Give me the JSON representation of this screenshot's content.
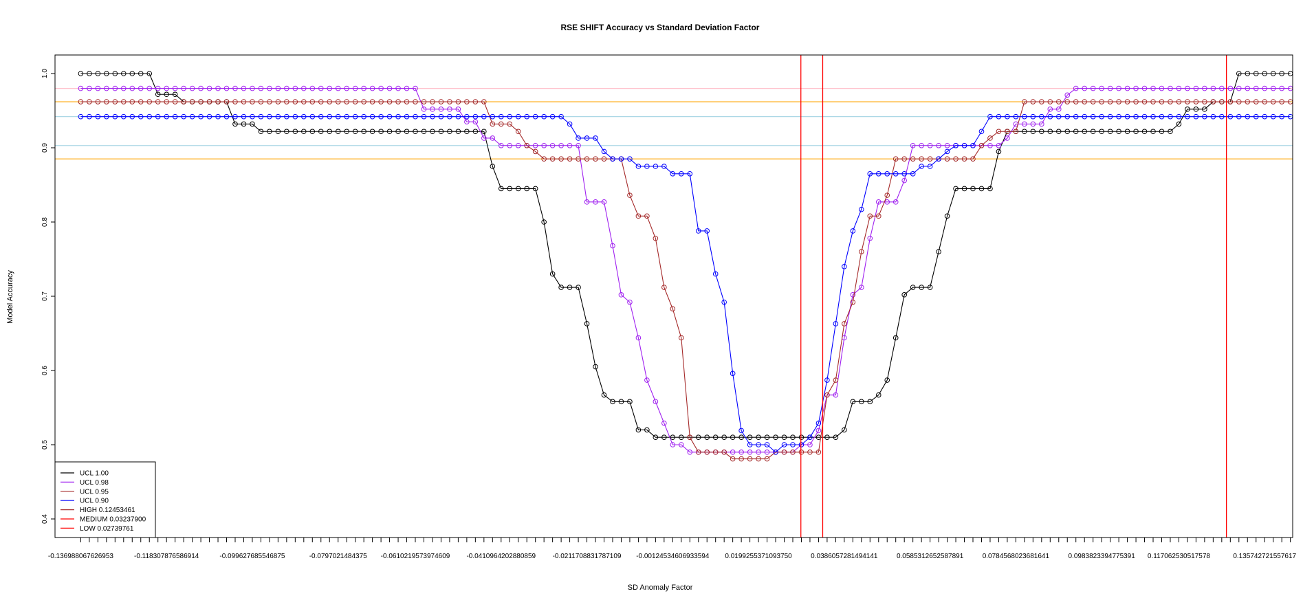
{
  "chart_data": {
    "type": "line",
    "title": "RSE SHIFT Accuracy vs Standard Deviation Factor",
    "xlabel": "SD Anomaly Factor",
    "ylabel": "Model Accuracy",
    "xlim": [
      -0.14286,
      0.13966
    ],
    "ylim": [
      0.375,
      1.025
    ],
    "yticks": [
      0.4,
      0.5,
      0.6,
      0.7,
      0.8,
      0.9,
      1.0
    ],
    "ytick_labels": [
      "0.4",
      "0.5",
      "0.6",
      "0.7",
      "0.8",
      "0.9",
      "1.0"
    ],
    "x_start": -0.136988067626953,
    "x_step": 0.00195831,
    "n_points": 142,
    "xtick_labels": [
      {
        "index": 0,
        "label": "-0.136988067626953"
      },
      {
        "index": 10,
        "label": "-0.118307876586914"
      },
      {
        "index": 20,
        "label": "-0.099627685546875"
      },
      {
        "index": 30,
        "label": "-0.0797021484375"
      },
      {
        "index": 39,
        "label": "-0.0610219573974609"
      },
      {
        "index": 49,
        "label": "-0.0410964202880859"
      },
      {
        "index": 59,
        "label": "-0.0211708831787109"
      },
      {
        "index": 69,
        "label": "-0.00124534606933594"
      },
      {
        "index": 79,
        "label": "0.0199255371093750"
      },
      {
        "index": 89,
        "label": "0.0386057281494141"
      },
      {
        "index": 99,
        "label": "0.0585312652587891"
      },
      {
        "index": 109,
        "label": "0.0784568023681641"
      },
      {
        "index": 119,
        "label": "0.0983823394775391"
      },
      {
        "index": 128,
        "label": "0.117062530517578"
      },
      {
        "index": 138,
        "label": "0.135742721557617"
      }
    ],
    "series": [
      {
        "name": "UCL 1.00",
        "color": "#000000",
        "segments": [
          [
            0,
            1.0
          ],
          [
            8,
            1.0
          ],
          [
            9,
            0.972
          ],
          [
            11,
            0.972
          ],
          [
            12,
            0.962
          ],
          [
            17,
            0.962
          ],
          [
            18,
            0.932
          ],
          [
            20,
            0.932
          ],
          [
            21,
            0.922
          ],
          [
            47,
            0.922
          ],
          [
            48,
            0.875
          ],
          [
            49,
            0.845
          ],
          [
            53,
            0.845
          ],
          [
            54,
            0.8
          ],
          [
            55,
            0.73
          ],
          [
            56,
            0.712
          ],
          [
            58,
            0.712
          ],
          [
            59,
            0.663
          ],
          [
            60,
            0.605
          ],
          [
            61,
            0.567
          ],
          [
            62,
            0.558
          ],
          [
            64,
            0.558
          ],
          [
            65,
            0.52
          ],
          [
            66,
            0.52
          ],
          [
            67,
            0.51
          ],
          [
            88,
            0.51
          ],
          [
            89,
            0.52
          ],
          [
            90,
            0.558
          ],
          [
            92,
            0.558
          ],
          [
            93,
            0.567
          ],
          [
            94,
            0.587
          ],
          [
            95,
            0.644
          ],
          [
            96,
            0.702
          ],
          [
            97,
            0.712
          ],
          [
            99,
            0.712
          ],
          [
            100,
            0.76
          ],
          [
            101,
            0.808
          ],
          [
            102,
            0.845
          ],
          [
            106,
            0.845
          ],
          [
            107,
            0.895
          ],
          [
            108,
            0.922
          ],
          [
            127,
            0.922
          ],
          [
            128,
            0.932
          ],
          [
            129,
            0.952
          ],
          [
            131,
            0.952
          ],
          [
            132,
            0.962
          ],
          [
            134,
            0.962
          ],
          [
            135,
            1.0
          ],
          [
            141,
            1.0
          ]
        ]
      },
      {
        "name": "UCL 0.98",
        "color": "#a020f0",
        "segments": [
          [
            0,
            0.98
          ],
          [
            39,
            0.98
          ],
          [
            40,
            0.952
          ],
          [
            44,
            0.952
          ],
          [
            45,
            0.935
          ],
          [
            47,
            0.913
          ],
          [
            48,
            0.913
          ],
          [
            49,
            0.903
          ],
          [
            57,
            0.903
          ],
          [
            58,
            0.903
          ],
          [
            59,
            0.827
          ],
          [
            61,
            0.827
          ],
          [
            62,
            0.768
          ],
          [
            63,
            0.702
          ],
          [
            64,
            0.692
          ],
          [
            65,
            0.644
          ],
          [
            66,
            0.587
          ],
          [
            67,
            0.558
          ],
          [
            68,
            0.529
          ],
          [
            69,
            0.5
          ],
          [
            70,
            0.5
          ],
          [
            71,
            0.49
          ],
          [
            83,
            0.49
          ],
          [
            84,
            0.5
          ],
          [
            85,
            0.5
          ],
          [
            86,
            0.519
          ],
          [
            87,
            0.567
          ],
          [
            88,
            0.567
          ],
          [
            89,
            0.644
          ],
          [
            90,
            0.702
          ],
          [
            91,
            0.712
          ],
          [
            92,
            0.778
          ],
          [
            93,
            0.827
          ],
          [
            95,
            0.827
          ],
          [
            96,
            0.856
          ],
          [
            97,
            0.903
          ],
          [
            107,
            0.903
          ],
          [
            108,
            0.913
          ],
          [
            109,
            0.932
          ],
          [
            112,
            0.932
          ],
          [
            113,
            0.952
          ],
          [
            114,
            0.952
          ],
          [
            115,
            0.971
          ],
          [
            116,
            0.98
          ],
          [
            141,
            0.98
          ]
        ]
      },
      {
        "name": "UCL 0.95",
        "color": "#a52a2a",
        "segments": [
          [
            0,
            0.962
          ],
          [
            47,
            0.962
          ],
          [
            48,
            0.932
          ],
          [
            50,
            0.932
          ],
          [
            51,
            0.922
          ],
          [
            52,
            0.903
          ],
          [
            53,
            0.895
          ],
          [
            54,
            0.885
          ],
          [
            63,
            0.885
          ],
          [
            64,
            0.836
          ],
          [
            65,
            0.808
          ],
          [
            66,
            0.808
          ],
          [
            67,
            0.778
          ],
          [
            68,
            0.712
          ],
          [
            69,
            0.683
          ],
          [
            70,
            0.644
          ],
          [
            71,
            0.51
          ],
          [
            72,
            0.49
          ],
          [
            75,
            0.49
          ],
          [
            76,
            0.481
          ],
          [
            80,
            0.481
          ],
          [
            81,
            0.49
          ],
          [
            86,
            0.49
          ],
          [
            87,
            0.567
          ],
          [
            88,
            0.587
          ],
          [
            89,
            0.663
          ],
          [
            90,
            0.692
          ],
          [
            91,
            0.76
          ],
          [
            92,
            0.808
          ],
          [
            93,
            0.808
          ],
          [
            94,
            0.836
          ],
          [
            95,
            0.885
          ],
          [
            104,
            0.885
          ],
          [
            105,
            0.903
          ],
          [
            106,
            0.913
          ],
          [
            107,
            0.922
          ],
          [
            109,
            0.922
          ],
          [
            110,
            0.962
          ],
          [
            141,
            0.962
          ]
        ]
      },
      {
        "name": "UCL 0.90",
        "color": "#0000ff",
        "segments": [
          [
            0,
            0.942
          ],
          [
            56,
            0.942
          ],
          [
            57,
            0.932
          ],
          [
            58,
            0.913
          ],
          [
            60,
            0.913
          ],
          [
            61,
            0.895
          ],
          [
            62,
            0.885
          ],
          [
            64,
            0.885
          ],
          [
            65,
            0.875
          ],
          [
            68,
            0.875
          ],
          [
            69,
            0.865
          ],
          [
            71,
            0.865
          ],
          [
            72,
            0.788
          ],
          [
            73,
            0.788
          ],
          [
            74,
            0.73
          ],
          [
            75,
            0.692
          ],
          [
            76,
            0.596
          ],
          [
            77,
            0.519
          ],
          [
            78,
            0.5
          ],
          [
            80,
            0.5
          ],
          [
            81,
            0.49
          ],
          [
            82,
            0.5
          ],
          [
            84,
            0.5
          ],
          [
            85,
            0.51
          ],
          [
            86,
            0.529
          ],
          [
            87,
            0.587
          ],
          [
            88,
            0.663
          ],
          [
            89,
            0.74
          ],
          [
            90,
            0.788
          ],
          [
            91,
            0.817
          ],
          [
            92,
            0.865
          ],
          [
            97,
            0.865
          ],
          [
            98,
            0.875
          ],
          [
            99,
            0.875
          ],
          [
            100,
            0.885
          ],
          [
            101,
            0.895
          ],
          [
            102,
            0.903
          ],
          [
            104,
            0.903
          ],
          [
            105,
            0.922
          ],
          [
            106,
            0.942
          ],
          [
            141,
            0.942
          ]
        ]
      }
    ],
    "hlines": [
      {
        "y": 0.98,
        "color": "#ffc0cb"
      },
      {
        "y": 0.962,
        "color": "#ffa500"
      },
      {
        "y": 0.942,
        "color": "#add8e6"
      },
      {
        "y": 0.903,
        "color": "#add8e6"
      },
      {
        "y": 0.885,
        "color": "#ffa500"
      }
    ],
    "vlines": [
      {
        "x": 0.02739761,
        "color": "#ff0000"
      },
      {
        "x": 0.032379,
        "color": "#ff0000"
      },
      {
        "x": 0.12453461,
        "color": "#ff0000"
      }
    ],
    "legend": {
      "position": "bottom-left",
      "entries": [
        {
          "label": "UCL 1.00",
          "color": "#000000"
        },
        {
          "label": "UCL 0.98",
          "color": "#a020f0"
        },
        {
          "label": "UCL 0.95",
          "color": "#a52a2a"
        },
        {
          "label": "UCL 0.90",
          "color": "#0000ff"
        },
        {
          "label": "HIGH 0.12453461",
          "color": "#a52a2a"
        },
        {
          "label": "MEDIUM 0.03237900",
          "color": "#ff0000"
        },
        {
          "label": "LOW 0.02739761",
          "color": "#ff0000"
        }
      ]
    }
  }
}
